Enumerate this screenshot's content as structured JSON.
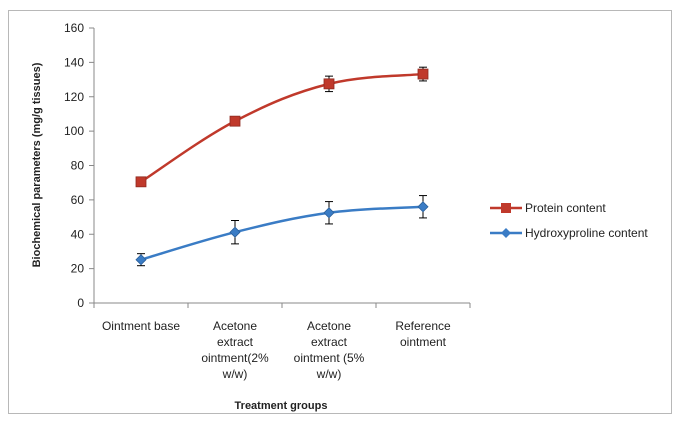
{
  "chart_data": {
    "type": "line",
    "categories": [
      [
        "Ointment base"
      ],
      [
        "Acetone",
        "extract",
        "ointment(2%",
        "w/w)"
      ],
      [
        "Acetone",
        "extract",
        "ointment (5%",
        "w/w)"
      ],
      [
        "Reference",
        "ointment"
      ]
    ],
    "xlabel": "Treatment groups",
    "ylabel": "Biochemical parameters (mg/g tissues)",
    "ylim": [
      0,
      160
    ],
    "yticks": [
      0,
      20,
      40,
      60,
      80,
      100,
      120,
      140,
      160
    ],
    "grid": false,
    "legend_position": "right",
    "series": [
      {
        "name": "Protein content",
        "color": "#c0392b",
        "marker": "square",
        "values": [
          70.5,
          105.8,
          127.5,
          133.2
        ],
        "error": [
          0,
          2.5,
          4.5,
          4.0
        ]
      },
      {
        "name": "Hydroxyproline content",
        "color": "#3a7cc5",
        "marker": "diamond",
        "values": [
          25.2,
          41.2,
          52.5,
          56.0
        ],
        "error": [
          3.5,
          6.8,
          6.5,
          6.5
        ]
      }
    ]
  }
}
